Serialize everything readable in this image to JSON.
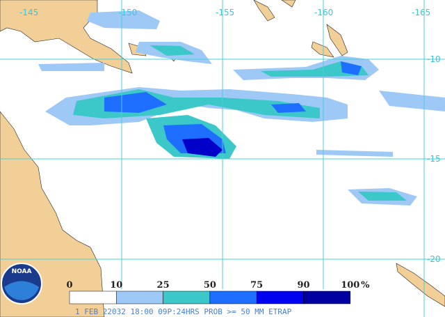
{
  "map": {
    "lon_labels": [
      "-145",
      "-150",
      "-155",
      "-160",
      "-165"
    ],
    "lat_labels": [
      "-10",
      "-15",
      "-20"
    ],
    "logo": "NOAA",
    "legend": {
      "labels": [
        "0",
        "10",
        "25",
        "50",
        "75",
        "90",
        "100"
      ],
      "unit": "%",
      "colors": [
        "#ffffff",
        "#9ec8f6",
        "#3cc8c8",
        "#1e6eff",
        "#0000f0",
        "#0000a0"
      ]
    },
    "caption": "1 FEB 22032 18:00 09P:24HRS PROB >= 50 MM ETRAP"
  }
}
